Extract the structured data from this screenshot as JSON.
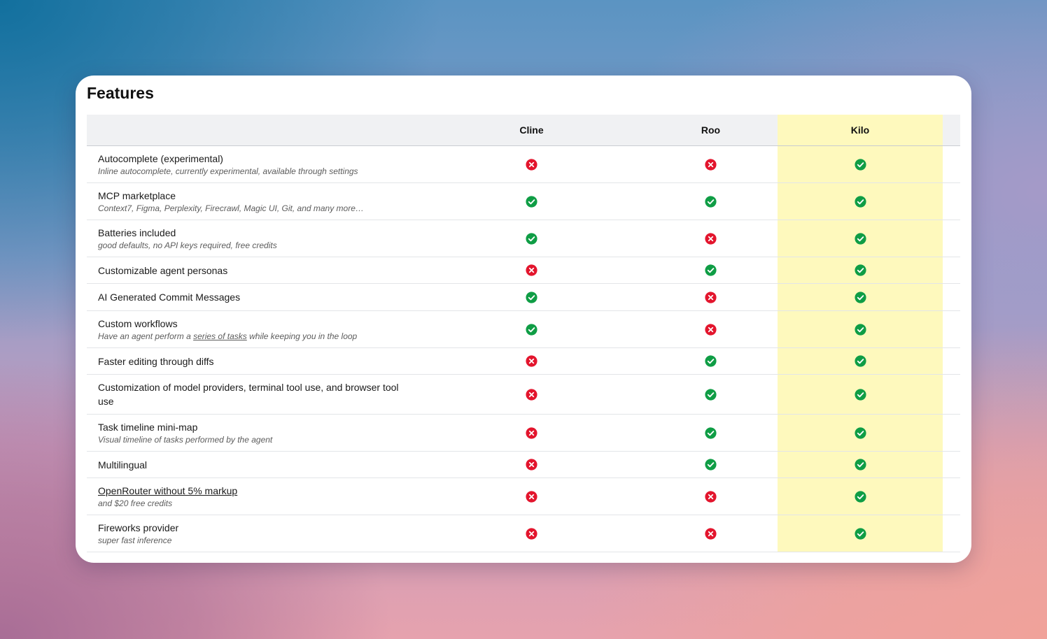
{
  "title": "Features",
  "columns": [
    "Cline",
    "Roo",
    "Kilo"
  ],
  "colors": {
    "check": "#0f9d45",
    "cross": "#e3152d",
    "highlight": "#fef9bd",
    "header_bg": "#f0f1f3"
  },
  "rows": [
    {
      "name": "Autocomplete (experimental)",
      "desc": "Inline autocomplete, currently experimental, available through settings",
      "values": [
        false,
        false,
        true
      ]
    },
    {
      "name": "MCP marketplace",
      "desc": "Context7, Figma, Perplexity, Firecrawl, Magic UI, Git, and many more…",
      "values": [
        true,
        true,
        true
      ]
    },
    {
      "name": "Batteries included",
      "desc": "good defaults, no API keys required, free credits",
      "values": [
        true,
        false,
        true
      ]
    },
    {
      "name": "Customizable agent personas",
      "values": [
        false,
        true,
        true
      ]
    },
    {
      "name": "AI Generated Commit Messages",
      "values": [
        true,
        false,
        true
      ]
    },
    {
      "name": "Custom workflows",
      "desc_before": "Have an agent perform a ",
      "desc_link": "series of tasks",
      "desc_after": " while keeping you in the loop",
      "values": [
        true,
        false,
        true
      ]
    },
    {
      "name": "Faster editing through diffs",
      "values": [
        false,
        true,
        true
      ]
    },
    {
      "name": "Customization of model providers, terminal tool use, and browser tool use",
      "values": [
        false,
        true,
        true
      ]
    },
    {
      "name": "Task timeline mini-map",
      "desc": "Visual timeline of tasks performed by the agent",
      "values": [
        false,
        true,
        true
      ]
    },
    {
      "name": "Multilingual",
      "values": [
        false,
        true,
        true
      ]
    },
    {
      "name_link": "OpenRouter without 5% markup",
      "desc": "and $20 free credits",
      "values": [
        false,
        false,
        true
      ]
    },
    {
      "name": "Fireworks provider",
      "desc": "super fast inference",
      "values": [
        false,
        false,
        true
      ]
    }
  ]
}
